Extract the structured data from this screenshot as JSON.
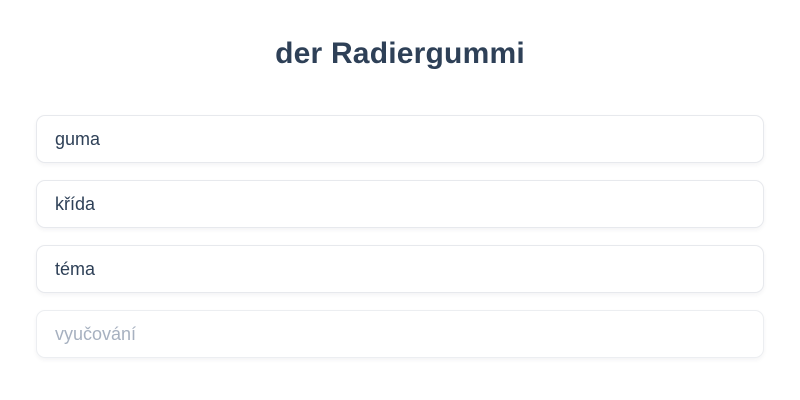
{
  "quiz": {
    "prompt": "der Radiergummi",
    "options": [
      {
        "label": "guma",
        "state": "normal"
      },
      {
        "label": "křída",
        "state": "normal"
      },
      {
        "label": "téma",
        "state": "normal"
      },
      {
        "label": "vyučování",
        "state": "muted"
      }
    ]
  },
  "colors": {
    "background": "#ffffff",
    "text_primary": "#2e4057",
    "text_muted": "#a7b1c0",
    "card_background": "#ffffff",
    "card_border": "#e7e9ed"
  }
}
